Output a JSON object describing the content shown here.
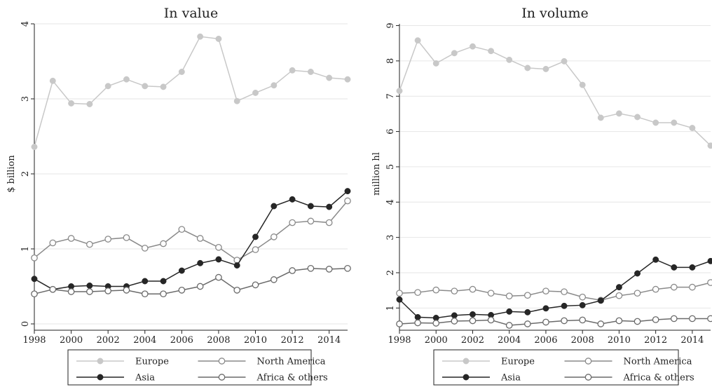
{
  "colors": {
    "europe": "#c8c8c8",
    "north_america": "#8a8a8a",
    "asia": "#262626",
    "africa": "#6a6a6a"
  },
  "chart_data": [
    {
      "type": "line",
      "title": "In value",
      "xlabel": "",
      "ylabel": "$ billion",
      "xlim": [
        1998,
        2015
      ],
      "ylim": [
        0,
        4
      ],
      "xticks": [
        1998,
        2000,
        2002,
        2004,
        2006,
        2008,
        2010,
        2012,
        2014
      ],
      "yticks": [
        0,
        1,
        2,
        3,
        4
      ],
      "grid": true,
      "legend_position": "bottom",
      "x": [
        1998,
        1999,
        2000,
        2001,
        2002,
        2003,
        2004,
        2005,
        2006,
        2007,
        2008,
        2009,
        2010,
        2011,
        2012,
        2013,
        2014,
        2015
      ],
      "series": [
        {
          "name": "Europe",
          "color": "#c8c8c8",
          "marker": "filled",
          "values": [
            2.36,
            3.24,
            2.94,
            2.93,
            3.17,
            3.26,
            3.17,
            3.16,
            3.36,
            3.83,
            3.8,
            2.97,
            3.08,
            3.18,
            3.38,
            3.36,
            3.28,
            3.26
          ]
        },
        {
          "name": "North America",
          "color": "#8a8a8a",
          "marker": "hollow",
          "values": [
            0.88,
            1.08,
            1.14,
            1.06,
            1.13,
            1.15,
            1.01,
            1.07,
            1.26,
            1.14,
            1.02,
            0.85,
            0.99,
            1.16,
            1.35,
            1.37,
            1.35,
            1.64
          ]
        },
        {
          "name": "Asia",
          "color": "#262626",
          "marker": "filled",
          "values": [
            0.6,
            0.46,
            0.5,
            0.51,
            0.5,
            0.5,
            0.57,
            0.57,
            0.71,
            0.81,
            0.86,
            0.78,
            1.16,
            1.57,
            1.66,
            1.57,
            1.56,
            1.77
          ]
        },
        {
          "name": "Africa & others",
          "color": "#6a6a6a",
          "marker": "hollow",
          "values": [
            0.4,
            0.46,
            0.43,
            0.43,
            0.44,
            0.45,
            0.4,
            0.4,
            0.45,
            0.5,
            0.62,
            0.45,
            0.52,
            0.59,
            0.71,
            0.74,
            0.73,
            0.74
          ]
        }
      ]
    },
    {
      "type": "line",
      "title": "In volume",
      "xlabel": "",
      "ylabel": "million hl",
      "xlim": [
        1998,
        2015
      ],
      "ylim": [
        0.55,
        9.05
      ],
      "xticks": [
        1998,
        2000,
        2002,
        2004,
        2006,
        2008,
        2010,
        2012,
        2014
      ],
      "yticks": [
        1,
        2,
        3,
        4,
        5,
        6,
        7,
        8,
        9
      ],
      "grid": true,
      "legend_position": "bottom",
      "x": [
        1998,
        1999,
        2000,
        2001,
        2002,
        2003,
        2004,
        2005,
        2006,
        2007,
        2008,
        2009,
        2010,
        2011,
        2012,
        2013,
        2014,
        2015
      ],
      "series": [
        {
          "name": "Europe",
          "color": "#c8c8c8",
          "marker": "filled",
          "values": [
            7.15,
            8.58,
            7.93,
            8.22,
            8.41,
            8.28,
            8.03,
            7.8,
            7.77,
            7.99,
            7.32,
            6.39,
            6.51,
            6.41,
            6.25,
            6.25,
            6.1,
            5.6
          ]
        },
        {
          "name": "North America",
          "color": "#8a8a8a",
          "marker": "hollow",
          "values": [
            1.42,
            1.44,
            1.51,
            1.48,
            1.53,
            1.42,
            1.34,
            1.36,
            1.48,
            1.46,
            1.31,
            1.22,
            1.35,
            1.42,
            1.53,
            1.59,
            1.59,
            1.72
          ]
        },
        {
          "name": "Asia",
          "color": "#262626",
          "marker": "filled",
          "values": [
            1.24,
            0.74,
            0.72,
            0.79,
            0.82,
            0.8,
            0.9,
            0.88,
            0.99,
            1.06,
            1.08,
            1.21,
            1.59,
            1.98,
            2.37,
            2.15,
            2.15,
            2.33
          ]
        },
        {
          "name": "Africa & others",
          "color": "#6a6a6a",
          "marker": "hollow",
          "values": [
            0.55,
            0.58,
            0.57,
            0.63,
            0.64,
            0.66,
            0.51,
            0.55,
            0.6,
            0.64,
            0.66,
            0.55,
            0.64,
            0.62,
            0.67,
            0.7,
            0.7,
            0.7
          ]
        }
      ]
    }
  ]
}
